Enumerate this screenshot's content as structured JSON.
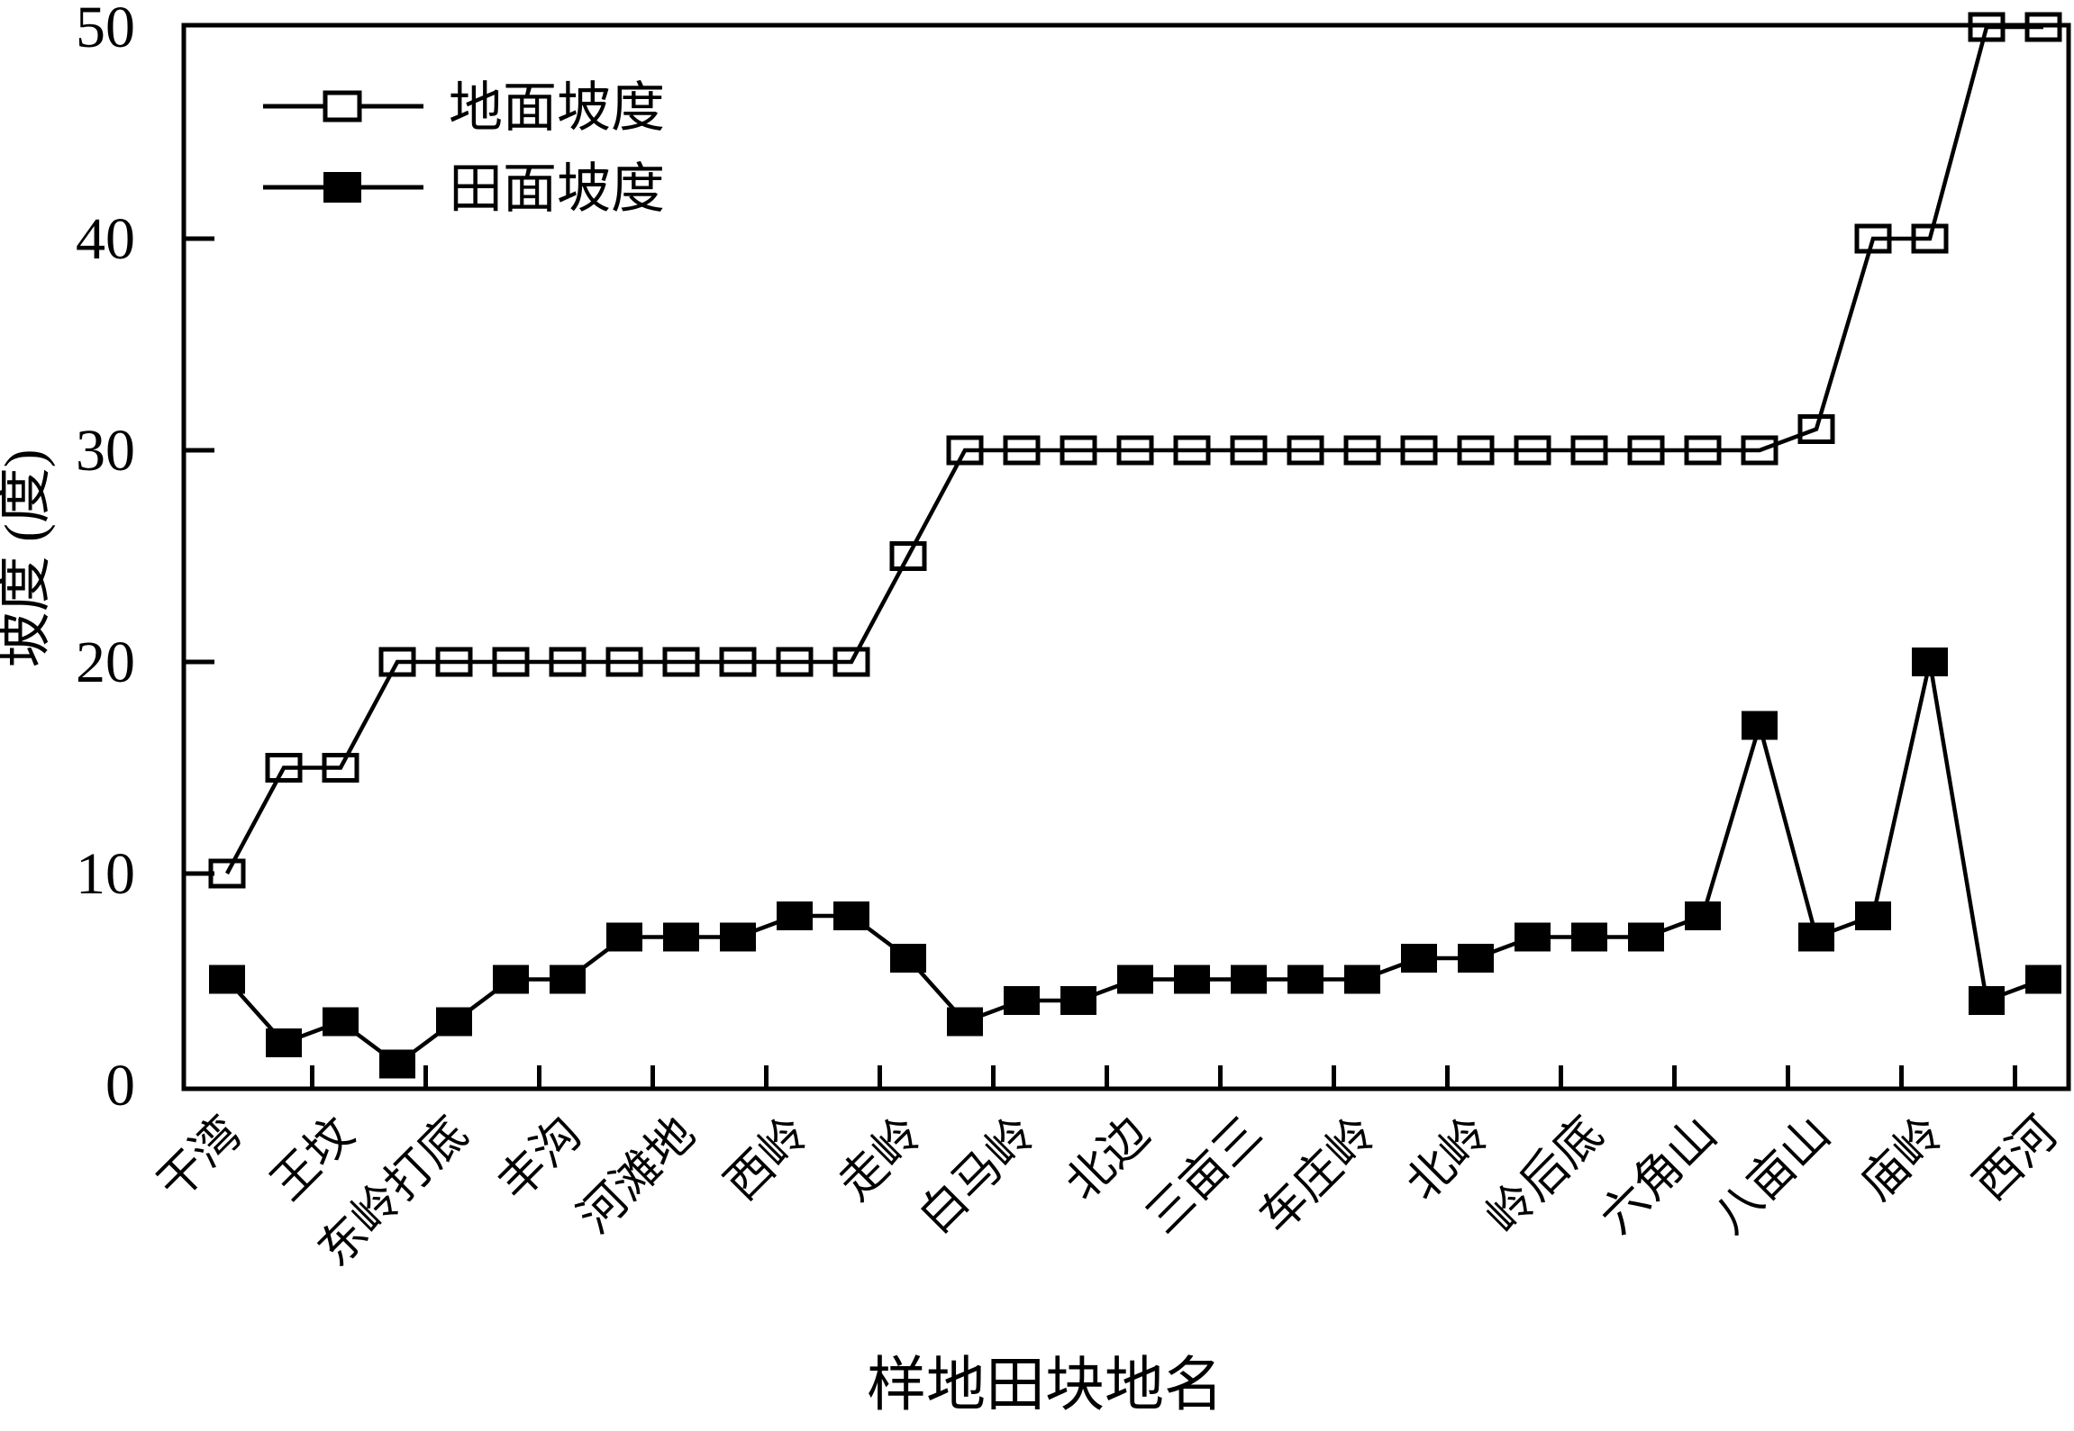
{
  "figure": {
    "background_color": "#ffffff",
    "line_color": "#000000",
    "y_axis_title": "坡度 (度)",
    "x_axis_title": "样地田块地名",
    "legend": {
      "position": "top-left",
      "items": [
        {
          "label": "地面坡度",
          "marker": "open-square-icon"
        },
        {
          "label": "田面坡度",
          "marker": "filled-square-icon"
        }
      ]
    }
  },
  "chart_data": {
    "type": "line",
    "title": "",
    "xlabel": "样地田块地名",
    "ylabel": "坡度 (度)",
    "ylim": [
      0,
      50
    ],
    "y_ticks": [
      0,
      10,
      20,
      30,
      40,
      50
    ],
    "grid": false,
    "legend_position": "top-left",
    "categories": [
      "干湾",
      "王坟",
      "东岭打底",
      "丰沟",
      "河滩地",
      "西岭",
      "走岭",
      "白马岭",
      "北边",
      "三亩三",
      "车庄岭",
      "北岭",
      "岭后底",
      "六角山",
      "八亩山",
      "庙岭",
      "西河"
    ],
    "points_per_category": 2,
    "note": "33 measurement points; each of the 17 place-name labels is anchored under every second point (even indices 0,2,...,32); short axis ticks separate each pair of points",
    "series": [
      {
        "name": "地面坡度",
        "marker": "open-square",
        "values": [
          10,
          15,
          15,
          20,
          20,
          20,
          20,
          20,
          20,
          20,
          20,
          20,
          25,
          30,
          30,
          30,
          30,
          30,
          30,
          30,
          30,
          30,
          30,
          30,
          30,
          30,
          30,
          30,
          31,
          40,
          40,
          50,
          50
        ]
      },
      {
        "name": "田面坡度",
        "marker": "filled-square",
        "values": [
          5,
          2,
          3,
          1,
          3,
          5,
          5,
          7,
          7,
          7,
          8,
          8,
          6,
          3,
          4,
          4,
          5,
          5,
          5,
          5,
          5,
          6,
          6,
          7,
          7,
          7,
          8,
          17,
          7,
          8,
          20,
          4,
          5
        ]
      }
    ]
  }
}
